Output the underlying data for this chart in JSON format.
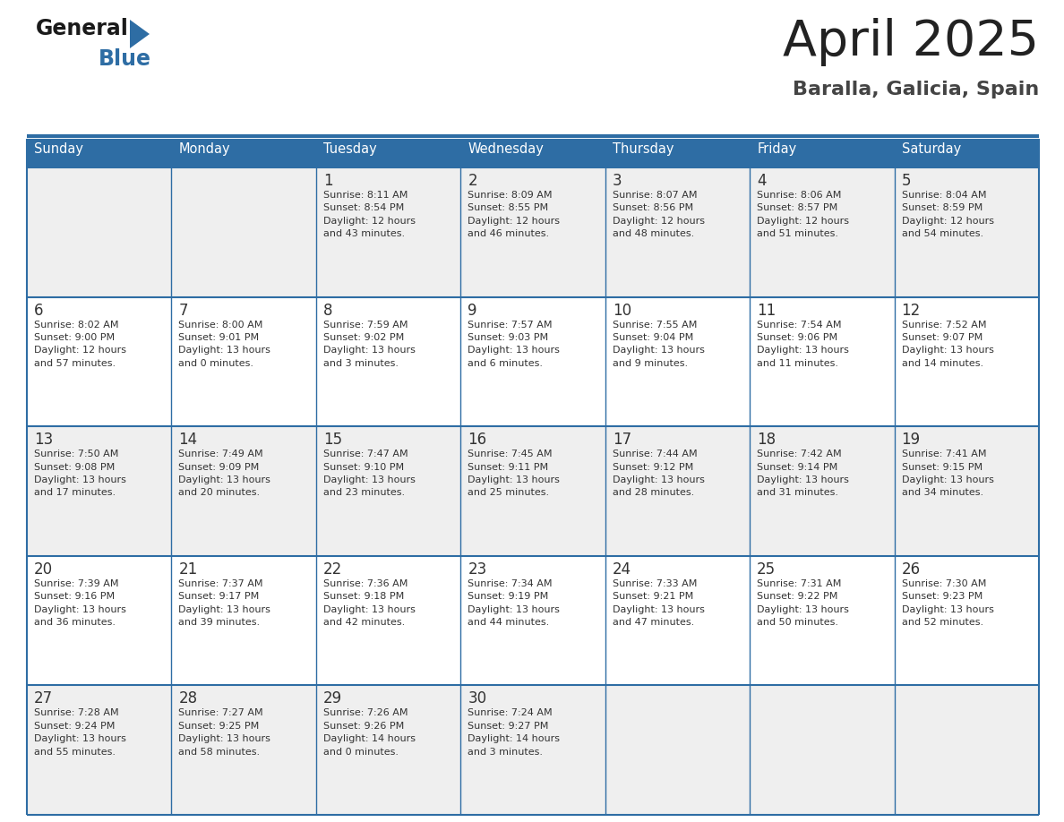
{
  "title": "April 2025",
  "subtitle": "Baralla, Galicia, Spain",
  "days_of_week": [
    "Sunday",
    "Monday",
    "Tuesday",
    "Wednesday",
    "Thursday",
    "Friday",
    "Saturday"
  ],
  "header_bg": "#2E6DA4",
  "header_text": "#FFFFFF",
  "cell_bg_even": "#EFEFEF",
  "cell_bg_odd": "#FFFFFF",
  "cell_border": "#2E6DA4",
  "day_num_color": "#333333",
  "info_text_color": "#333333",
  "title_color": "#222222",
  "subtitle_color": "#444444",
  "logo_general_color": "#1a1a1a",
  "logo_blue_color": "#2E6DA4",
  "calendar_data": [
    [
      {
        "day": null,
        "info": ""
      },
      {
        "day": null,
        "info": ""
      },
      {
        "day": 1,
        "info": "Sunrise: 8:11 AM\nSunset: 8:54 PM\nDaylight: 12 hours\nand 43 minutes."
      },
      {
        "day": 2,
        "info": "Sunrise: 8:09 AM\nSunset: 8:55 PM\nDaylight: 12 hours\nand 46 minutes."
      },
      {
        "day": 3,
        "info": "Sunrise: 8:07 AM\nSunset: 8:56 PM\nDaylight: 12 hours\nand 48 minutes."
      },
      {
        "day": 4,
        "info": "Sunrise: 8:06 AM\nSunset: 8:57 PM\nDaylight: 12 hours\nand 51 minutes."
      },
      {
        "day": 5,
        "info": "Sunrise: 8:04 AM\nSunset: 8:59 PM\nDaylight: 12 hours\nand 54 minutes."
      }
    ],
    [
      {
        "day": 6,
        "info": "Sunrise: 8:02 AM\nSunset: 9:00 PM\nDaylight: 12 hours\nand 57 minutes."
      },
      {
        "day": 7,
        "info": "Sunrise: 8:00 AM\nSunset: 9:01 PM\nDaylight: 13 hours\nand 0 minutes."
      },
      {
        "day": 8,
        "info": "Sunrise: 7:59 AM\nSunset: 9:02 PM\nDaylight: 13 hours\nand 3 minutes."
      },
      {
        "day": 9,
        "info": "Sunrise: 7:57 AM\nSunset: 9:03 PM\nDaylight: 13 hours\nand 6 minutes."
      },
      {
        "day": 10,
        "info": "Sunrise: 7:55 AM\nSunset: 9:04 PM\nDaylight: 13 hours\nand 9 minutes."
      },
      {
        "day": 11,
        "info": "Sunrise: 7:54 AM\nSunset: 9:06 PM\nDaylight: 13 hours\nand 11 minutes."
      },
      {
        "day": 12,
        "info": "Sunrise: 7:52 AM\nSunset: 9:07 PM\nDaylight: 13 hours\nand 14 minutes."
      }
    ],
    [
      {
        "day": 13,
        "info": "Sunrise: 7:50 AM\nSunset: 9:08 PM\nDaylight: 13 hours\nand 17 minutes."
      },
      {
        "day": 14,
        "info": "Sunrise: 7:49 AM\nSunset: 9:09 PM\nDaylight: 13 hours\nand 20 minutes."
      },
      {
        "day": 15,
        "info": "Sunrise: 7:47 AM\nSunset: 9:10 PM\nDaylight: 13 hours\nand 23 minutes."
      },
      {
        "day": 16,
        "info": "Sunrise: 7:45 AM\nSunset: 9:11 PM\nDaylight: 13 hours\nand 25 minutes."
      },
      {
        "day": 17,
        "info": "Sunrise: 7:44 AM\nSunset: 9:12 PM\nDaylight: 13 hours\nand 28 minutes."
      },
      {
        "day": 18,
        "info": "Sunrise: 7:42 AM\nSunset: 9:14 PM\nDaylight: 13 hours\nand 31 minutes."
      },
      {
        "day": 19,
        "info": "Sunrise: 7:41 AM\nSunset: 9:15 PM\nDaylight: 13 hours\nand 34 minutes."
      }
    ],
    [
      {
        "day": 20,
        "info": "Sunrise: 7:39 AM\nSunset: 9:16 PM\nDaylight: 13 hours\nand 36 minutes."
      },
      {
        "day": 21,
        "info": "Sunrise: 7:37 AM\nSunset: 9:17 PM\nDaylight: 13 hours\nand 39 minutes."
      },
      {
        "day": 22,
        "info": "Sunrise: 7:36 AM\nSunset: 9:18 PM\nDaylight: 13 hours\nand 42 minutes."
      },
      {
        "day": 23,
        "info": "Sunrise: 7:34 AM\nSunset: 9:19 PM\nDaylight: 13 hours\nand 44 minutes."
      },
      {
        "day": 24,
        "info": "Sunrise: 7:33 AM\nSunset: 9:21 PM\nDaylight: 13 hours\nand 47 minutes."
      },
      {
        "day": 25,
        "info": "Sunrise: 7:31 AM\nSunset: 9:22 PM\nDaylight: 13 hours\nand 50 minutes."
      },
      {
        "day": 26,
        "info": "Sunrise: 7:30 AM\nSunset: 9:23 PM\nDaylight: 13 hours\nand 52 minutes."
      }
    ],
    [
      {
        "day": 27,
        "info": "Sunrise: 7:28 AM\nSunset: 9:24 PM\nDaylight: 13 hours\nand 55 minutes."
      },
      {
        "day": 28,
        "info": "Sunrise: 7:27 AM\nSunset: 9:25 PM\nDaylight: 13 hours\nand 58 minutes."
      },
      {
        "day": 29,
        "info": "Sunrise: 7:26 AM\nSunset: 9:26 PM\nDaylight: 14 hours\nand 0 minutes."
      },
      {
        "day": 30,
        "info": "Sunrise: 7:24 AM\nSunset: 9:27 PM\nDaylight: 14 hours\nand 3 minutes."
      },
      {
        "day": null,
        "info": ""
      },
      {
        "day": null,
        "info": ""
      },
      {
        "day": null,
        "info": ""
      }
    ]
  ]
}
